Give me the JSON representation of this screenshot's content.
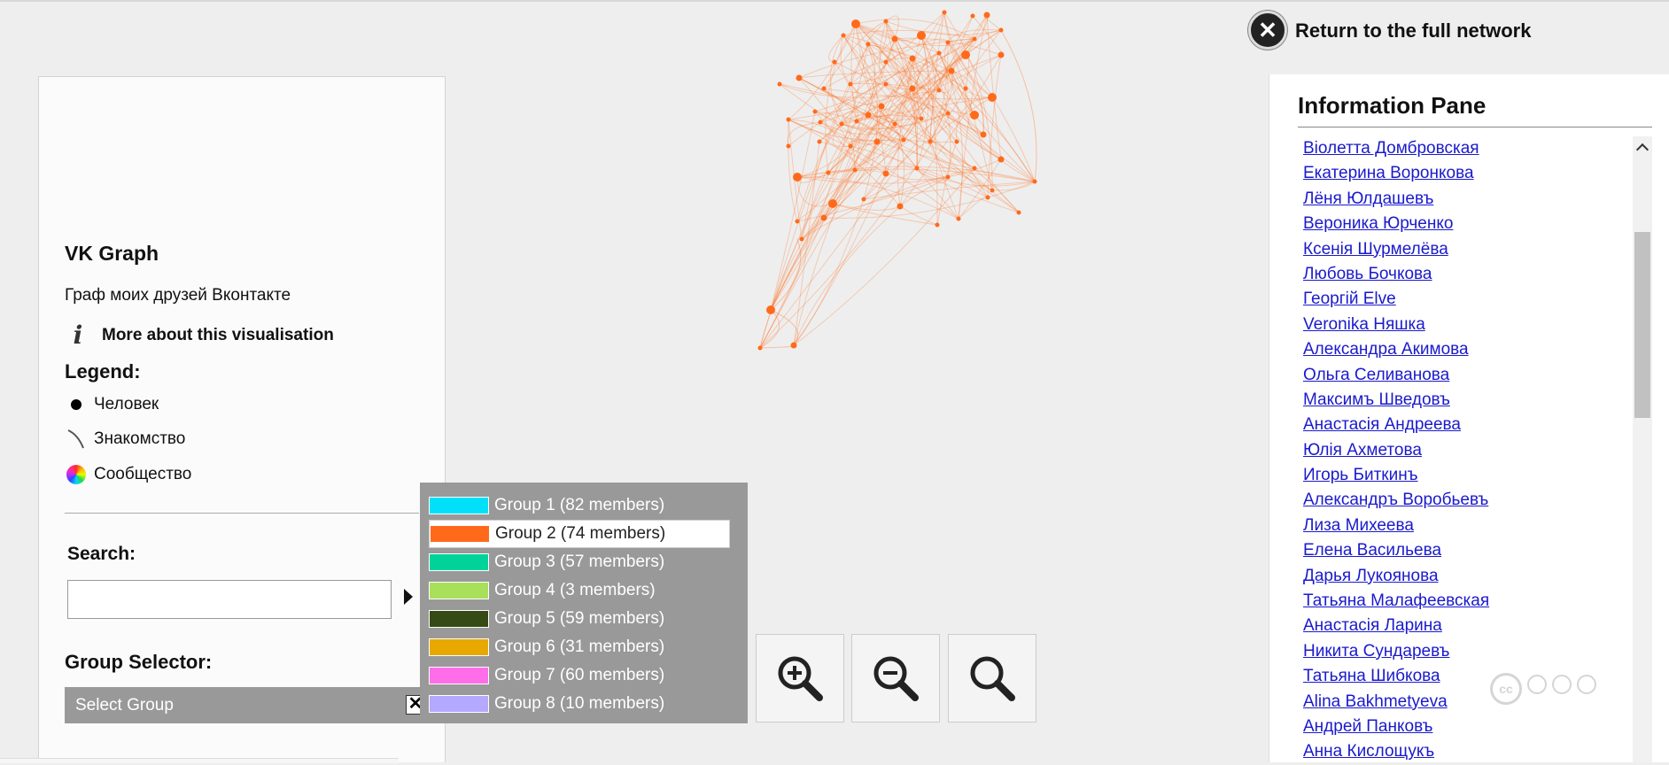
{
  "left_panel": {
    "title": "VK Graph",
    "description": "Граф моих друзей Вконтакте",
    "more_link": "More about this visualisation",
    "legend": {
      "title": "Legend:",
      "items": [
        {
          "icon": "node-dot-icon",
          "label": "Человек"
        },
        {
          "icon": "edge-curve-icon",
          "label": "Знакомство"
        },
        {
          "icon": "community-rainbow-icon",
          "label": "Сообщество"
        }
      ]
    },
    "search": {
      "label": "Search:",
      "value": "",
      "placeholder": ""
    },
    "group_selector": {
      "label": "Group Selector:",
      "selected": "Select Group",
      "clear_symbol": "✕"
    }
  },
  "group_dropdown": {
    "selected_index": 1,
    "items": [
      {
        "label": "Group 1 (82 members)",
        "color": "#00e0f8"
      },
      {
        "label": "Group 2 (74 members)",
        "color": "#ff6a1a"
      },
      {
        "label": "Group 3 (57 members)",
        "color": "#00d39a"
      },
      {
        "label": "Group 4 (3 members)",
        "color": "#a8e05a"
      },
      {
        "label": "Group 5 (59 members)",
        "color": "#354a14"
      },
      {
        "label": "Group 6 (31 members)",
        "color": "#e8a800"
      },
      {
        "label": "Group 7 (60 members)",
        "color": "#ff6de8"
      },
      {
        "label": "Group 8 (10 members)",
        "color": "#b4a8ff"
      },
      {
        "label": "",
        "color": "#bcc23a"
      }
    ]
  },
  "zoom": {
    "buttons": [
      {
        "name": "zoom-in-button",
        "icon": "zoom-in-icon"
      },
      {
        "name": "zoom-out-button",
        "icon": "zoom-out-icon"
      },
      {
        "name": "zoom-reset-button",
        "icon": "magnifier-icon"
      }
    ]
  },
  "return_link": {
    "label": "Return to the full network",
    "icon": "close-circle-icon"
  },
  "info_pane": {
    "title": "Information Pane",
    "names": [
      "Віолетта Домбровская",
      "Екатерина Воронкова",
      "Лёня Юлдашевъ",
      "Вероника Юрченко",
      "Ксенія Шурмелёва",
      "Любовь Бочкова",
      "Георгій Elve",
      "Veronika Няшка",
      "Александра Акимова",
      "Ольга Селиванова",
      "Максимъ Шведовъ",
      "Анастасія Андреева",
      "Юлія Ахметова",
      "Игорь Биткинъ",
      "Александръ Воробьевъ",
      "Лиза Михеева",
      "Елена Васильева",
      "Дарья Лукоянова",
      "Татьяна Малафеевская",
      "Анастасія Ларина",
      "Никита Сундаревъ",
      "Татьяна Шибкова",
      "Alina Bakhmetyeva",
      "Андрей Панковъ",
      "Анна Кислощукъ"
    ]
  },
  "colors": {
    "graph_accent": "#ff6a1a",
    "link": "#1a1acc",
    "panel_gray": "#999999"
  }
}
